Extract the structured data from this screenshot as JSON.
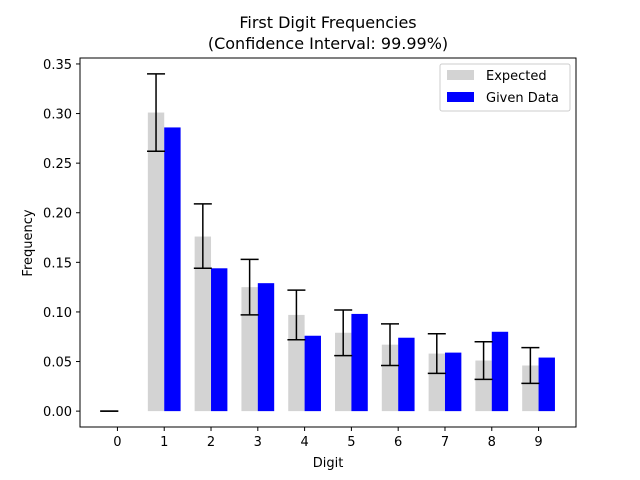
{
  "chart_data": {
    "type": "bar",
    "title": "First Digit Frequencies",
    "subtitle": "(Confidence Interval: 99.99%)",
    "xlabel": "Digit",
    "ylabel": "Frequency",
    "categories": [
      "0",
      "1",
      "2",
      "3",
      "4",
      "5",
      "6",
      "7",
      "8",
      "9"
    ],
    "ylim": [
      -0.016,
      0.356
    ],
    "yticks": [
      0.0,
      0.05,
      0.1,
      0.15,
      0.2,
      0.25,
      0.3,
      0.35
    ],
    "ytick_labels": [
      "0.00",
      "0.05",
      "0.10",
      "0.15",
      "0.20",
      "0.25",
      "0.30",
      "0.35"
    ],
    "grid": false,
    "legend_position": "top-right",
    "series": [
      {
        "name": "Expected",
        "color": "#d3d3d3",
        "values": [
          0.0,
          0.301,
          0.176,
          0.125,
          0.097,
          0.079,
          0.067,
          0.058,
          0.051,
          0.046
        ],
        "error_low": [
          0.0,
          0.262,
          0.144,
          0.097,
          0.072,
          0.056,
          0.046,
          0.038,
          0.032,
          0.028
        ],
        "error_high": [
          0.0,
          0.34,
          0.209,
          0.153,
          0.122,
          0.102,
          0.088,
          0.078,
          0.07,
          0.064
        ]
      },
      {
        "name": "Given Data",
        "color": "#0000ff",
        "values": [
          0.0,
          0.286,
          0.144,
          0.129,
          0.076,
          0.098,
          0.074,
          0.059,
          0.08,
          0.054
        ]
      }
    ]
  }
}
